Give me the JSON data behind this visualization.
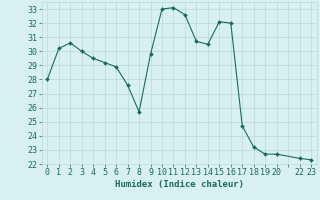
{
  "xlabel": "Humidex (Indice chaleur)",
  "ylabel": "",
  "x_values": [
    0,
    1,
    2,
    3,
    4,
    5,
    6,
    7,
    8,
    9,
    10,
    11,
    12,
    13,
    14,
    15,
    16,
    17,
    18,
    19,
    20,
    22,
    23
  ],
  "y_values": [
    28.0,
    30.2,
    30.6,
    30.0,
    29.5,
    29.2,
    28.9,
    27.6,
    25.7,
    29.8,
    33.0,
    33.1,
    32.6,
    30.7,
    30.5,
    32.1,
    32.0,
    24.7,
    23.2,
    22.7,
    22.7,
    22.4,
    22.3
  ],
  "line_color": "#1a6b5e",
  "marker": "D",
  "marker_size": 2.0,
  "background_color": "#d9f0f0",
  "grid_color": "#b8d8d8",
  "ylim": [
    22,
    33.5
  ],
  "xlim": [
    -0.5,
    23.5
  ],
  "yticks": [
    22,
    23,
    24,
    25,
    26,
    27,
    28,
    29,
    30,
    31,
    32,
    33
  ],
  "xtick_labels": [
    "0",
    "1",
    "2",
    "3",
    "4",
    "5",
    "6",
    "7",
    "8",
    "9",
    "10",
    "11",
    "12",
    "13",
    "14",
    "15",
    "16",
    "17",
    "18",
    "19",
    "20",
    "",
    "22",
    "23"
  ],
  "xtick_positions": [
    0,
    1,
    2,
    3,
    4,
    5,
    6,
    7,
    8,
    9,
    10,
    11,
    12,
    13,
    14,
    15,
    16,
    17,
    18,
    19,
    20,
    21,
    22,
    23
  ],
  "label_fontsize": 6.5,
  "tick_fontsize": 6.0
}
